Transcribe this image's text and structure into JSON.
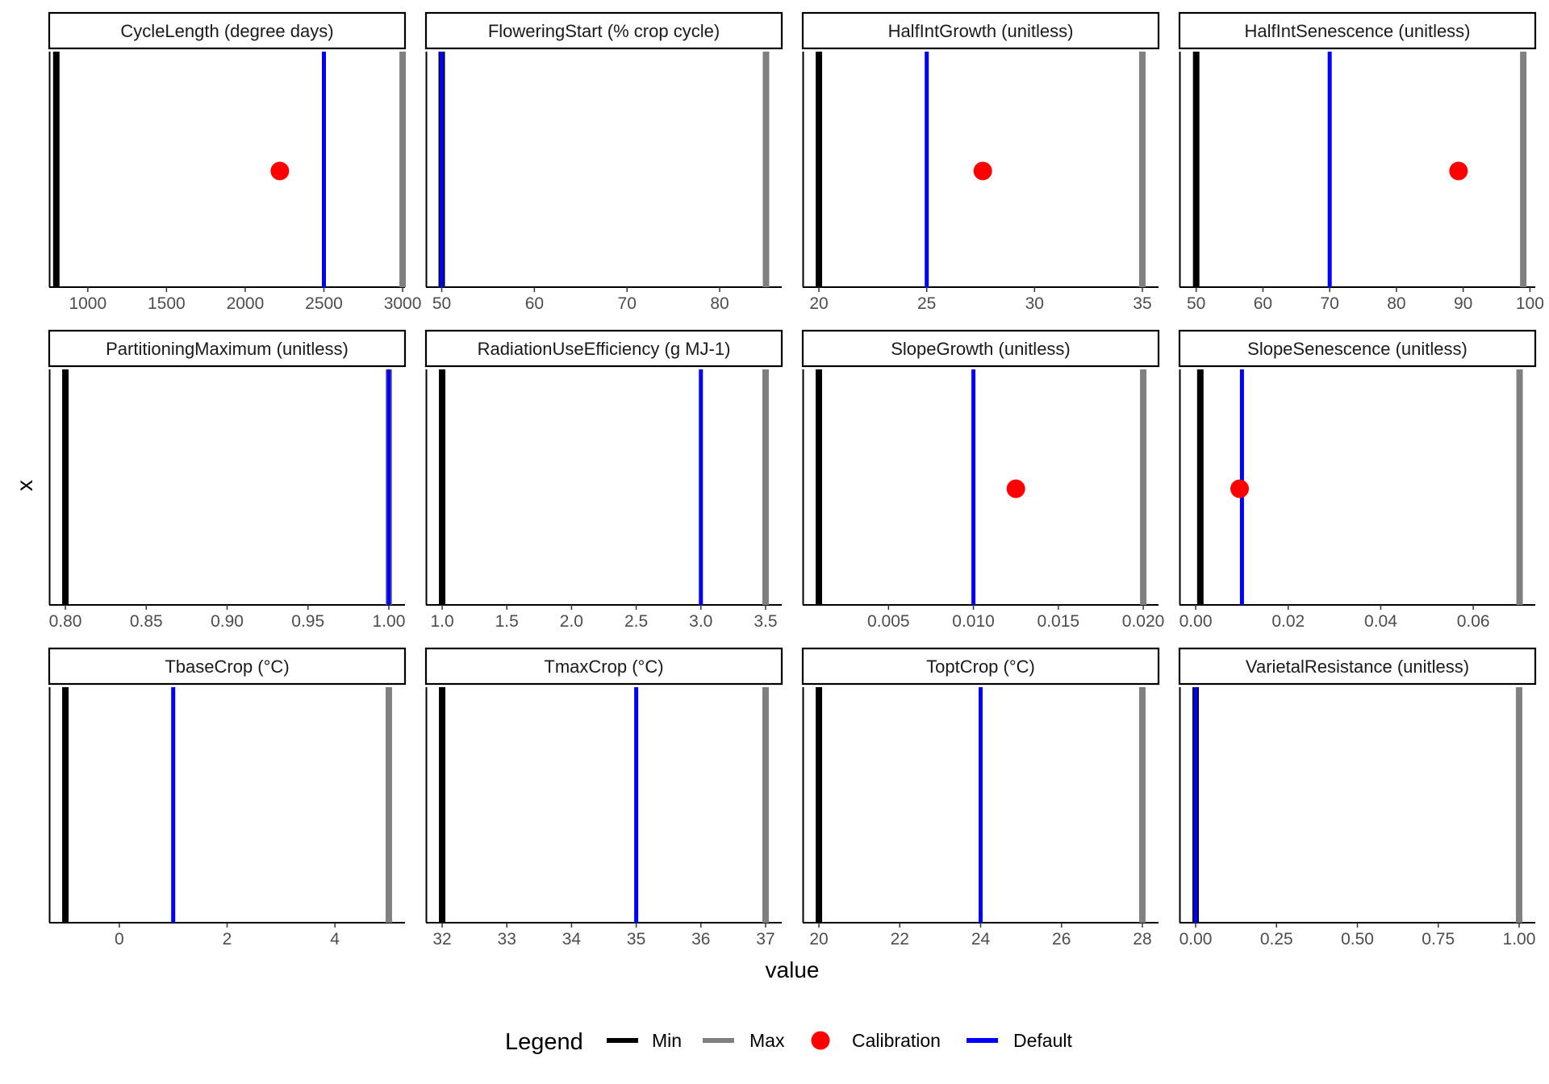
{
  "chart_data": {
    "type": "faceted-reference-lines",
    "xlabel": "value",
    "ylabel": "x",
    "legend": {
      "title": "Legend",
      "position": "bottom",
      "entries": [
        {
          "label": "Min",
          "kind": "line",
          "color": "#000000"
        },
        {
          "label": "Max",
          "kind": "line",
          "color": "#808080"
        },
        {
          "label": "Calibration",
          "kind": "point",
          "color": "#ff0000"
        },
        {
          "label": "Default",
          "kind": "line",
          "color": "#0000ff"
        }
      ]
    },
    "colors": {
      "min": "#000000",
      "max": "#808080",
      "calibration": "#ff0000",
      "default": "#0000ff"
    },
    "facets": [
      {
        "title": "CycleLength (degree days)",
        "xlim": [
          755,
          3015
        ],
        "ticks": [
          1000,
          1500,
          2000,
          2500,
          3000
        ],
        "tick_labels": [
          "1000",
          "1500",
          "2000",
          "2500",
          "3000"
        ],
        "min": 800,
        "max": 3000,
        "default": 2500,
        "calibration": 2220
      },
      {
        "title": "FloweringStart (% crop cycle)",
        "xlim": [
          48.3,
          86.7
        ],
        "ticks": [
          50,
          60,
          70,
          80
        ],
        "tick_labels": [
          "50",
          "60",
          "70",
          "80"
        ],
        "min": 50,
        "max": 85,
        "default": 50,
        "calibration": null
      },
      {
        "title": "HalfIntGrowth (unitless)",
        "xlim": [
          19.25,
          35.75
        ],
        "ticks": [
          20,
          25,
          30,
          35
        ],
        "tick_labels": [
          "20",
          "25",
          "30",
          "35"
        ],
        "min": 20,
        "max": 35,
        "default": 25,
        "calibration": 27.6
      },
      {
        "title": "HalfIntSenescence (unitless)",
        "xlim": [
          47.5,
          100.8
        ],
        "ticks": [
          50,
          60,
          70,
          80,
          90,
          100
        ],
        "tick_labels": [
          "50",
          "60",
          "70",
          "80",
          "90",
          "100"
        ],
        "min": 50,
        "max": 99,
        "default": 70,
        "calibration": 89.3
      },
      {
        "title": "PartitioningMaximum (unitless)",
        "xlim": [
          0.79,
          1.01
        ],
        "ticks": [
          0.8,
          0.85,
          0.9,
          0.95,
          1.0
        ],
        "tick_labels": [
          "0.80",
          "0.85",
          "0.90",
          "0.95",
          "1.00"
        ],
        "min": 0.8,
        "max": 1.0,
        "default": 1.0,
        "calibration": null
      },
      {
        "title": "RadiationUseEfficiency (g MJ-1)",
        "xlim": [
          0.875,
          3.625
        ],
        "ticks": [
          1.0,
          1.5,
          2.0,
          2.5,
          3.0,
          3.5
        ],
        "tick_labels": [
          "1.0",
          "1.5",
          "2.0",
          "2.5",
          "3.0",
          "3.5"
        ],
        "min": 1.0,
        "max": 3.5,
        "default": 3.0,
        "calibration": null
      },
      {
        "title": "SlopeGrowth (unitless)",
        "xlim": [
          -5e-05,
          0.0209
        ],
        "ticks": [
          0.005,
          0.01,
          0.015,
          0.02
        ],
        "tick_labels": [
          "0.005",
          "0.010",
          "0.015",
          "0.020"
        ],
        "min": 0.0009,
        "max": 0.02,
        "default": 0.01,
        "calibration": 0.0125
      },
      {
        "title": "SlopeSenescence (unitless)",
        "xlim": [
          -0.0035,
          0.0734
        ],
        "ticks": [
          0.0,
          0.02,
          0.04,
          0.06
        ],
        "tick_labels": [
          "0.00",
          "0.02",
          "0.04",
          "0.06"
        ],
        "min": 0.001,
        "max": 0.07,
        "default": 0.01,
        "calibration": 0.0095
      },
      {
        "title": "TbaseCrop (°C)",
        "xlim": [
          -1.3,
          5.3
        ],
        "ticks": [
          0,
          2,
          4
        ],
        "tick_labels": [
          "0",
          "2",
          "4"
        ],
        "min": -1,
        "max": 5,
        "default": 1,
        "calibration": null
      },
      {
        "title": "TmaxCrop (°C)",
        "xlim": [
          31.75,
          37.25
        ],
        "ticks": [
          32,
          33,
          34,
          35,
          36,
          37
        ],
        "tick_labels": [
          "32",
          "33",
          "34",
          "35",
          "36",
          "37"
        ],
        "min": 32,
        "max": 37,
        "default": 35,
        "calibration": null
      },
      {
        "title": "ToptCrop (°C)",
        "xlim": [
          19.6,
          28.4
        ],
        "ticks": [
          20,
          22,
          24,
          26,
          28
        ],
        "tick_labels": [
          "20",
          "22",
          "24",
          "26",
          "28"
        ],
        "min": 20,
        "max": 28,
        "default": 24,
        "calibration": null
      },
      {
        "title": "VarietalResistance (unitless)",
        "xlim": [
          -0.05,
          1.05
        ],
        "ticks": [
          0.0,
          0.25,
          0.5,
          0.75,
          1.0
        ],
        "tick_labels": [
          "0.00",
          "0.25",
          "0.50",
          "0.75",
          "1.00"
        ],
        "min": 0,
        "max": 1,
        "default": 0,
        "calibration": null
      }
    ]
  }
}
